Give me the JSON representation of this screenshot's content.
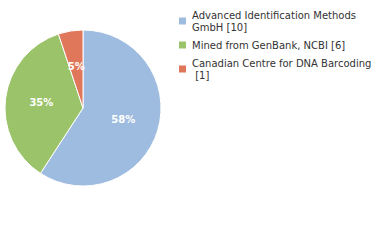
{
  "chart_data": {
    "type": "pie",
    "categories": [
      "Advanced Identification Methods GmbH [10]",
      "Mined from GenBank, NCBI [6]",
      "Canadian Centre for DNA Barcoding [1]"
    ],
    "values": [
      58,
      35,
      5
    ],
    "value_labels": [
      "58%",
      "35%",
      "5%"
    ],
    "colors": [
      "#9ebbe0",
      "#9bc46a",
      "#e0775a"
    ],
    "data_labels": true,
    "legend": "top-right"
  }
}
